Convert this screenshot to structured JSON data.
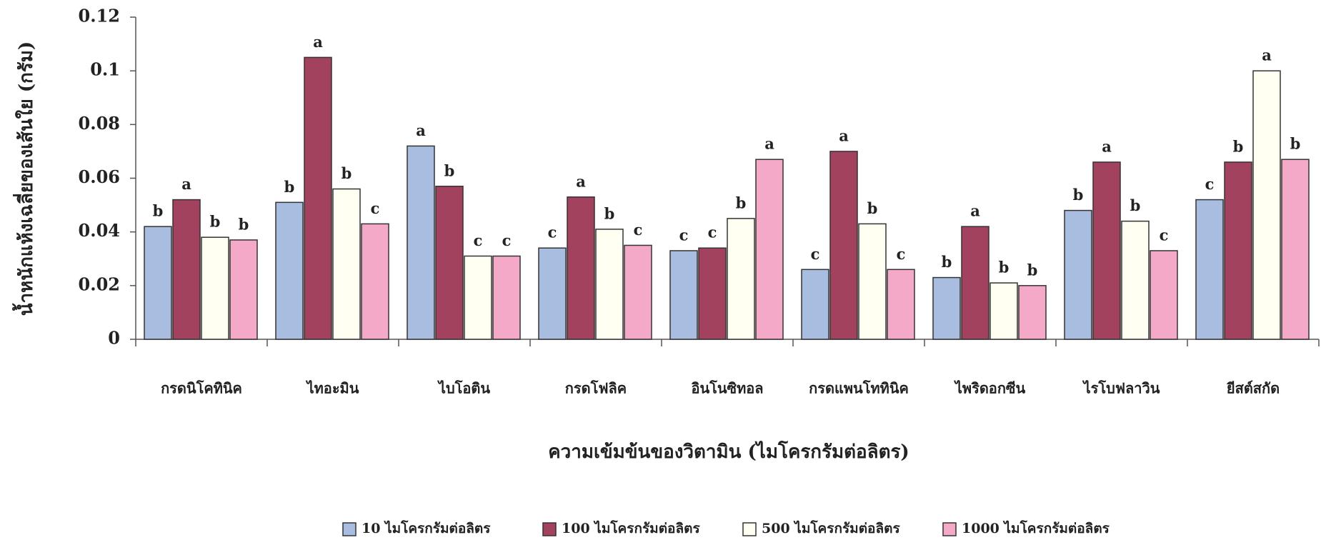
{
  "chart_data": {
    "type": "bar",
    "y_label": "น้ำหนักแห้งเฉลี่ยของเส้นใย (กรัม)",
    "x_label": "ความเข้มข้นของวิตามิน (ไมโครกรัมต่อลิตร)",
    "categories": [
      "กรดนิโคทินิค",
      "ไทอะมิน",
      "ไบโอติน",
      "กรดโฟลิค",
      "อินโนซิทอล",
      "กรดแพนโททินิค",
      "ไพริดอกซีน",
      "ไรโบฟลาวิน",
      "ยีสต์สกัด"
    ],
    "series": [
      {
        "name": "10 ไมโครกรัมต่อลิตร",
        "color": "#a9bde0",
        "values": [
          0.042,
          0.051,
          0.072,
          0.034,
          0.033,
          0.026,
          0.023,
          0.048,
          0.052
        ],
        "labels": [
          "b",
          "b",
          "a",
          "c",
          "c",
          "c",
          "b",
          "b",
          "c"
        ]
      },
      {
        "name": "100 ไมโครกรัมต่อลิตร",
        "color": "#a3425f",
        "values": [
          0.052,
          0.105,
          0.057,
          0.053,
          0.034,
          0.07,
          0.042,
          0.066,
          0.066
        ],
        "labels": [
          "a",
          "a",
          "b",
          "a",
          "c",
          "a",
          "a",
          "a",
          "b"
        ]
      },
      {
        "name": "500 ไมโครกรัมต่อลิตร",
        "color": "#fffff2",
        "values": [
          0.038,
          0.056,
          0.031,
          0.041,
          0.045,
          0.043,
          0.021,
          0.044,
          0.1
        ],
        "labels": [
          "b",
          "b",
          "c",
          "b",
          "b",
          "b",
          "b",
          "b",
          "a"
        ]
      },
      {
        "name": "1000 ไมโครกรัมต่อลิตร",
        "color": "#f4a9c8",
        "values": [
          0.037,
          0.043,
          0.031,
          0.035,
          0.067,
          0.026,
          0.02,
          0.033,
          0.067
        ],
        "labels": [
          "b",
          "c",
          "c",
          "c",
          "a",
          "c",
          "b",
          "c",
          "b"
        ]
      }
    ],
    "ylim": [
      0,
      0.12
    ],
    "yticks": [
      0,
      0.02,
      0.04,
      0.06,
      0.08,
      0.1,
      0.12
    ]
  }
}
